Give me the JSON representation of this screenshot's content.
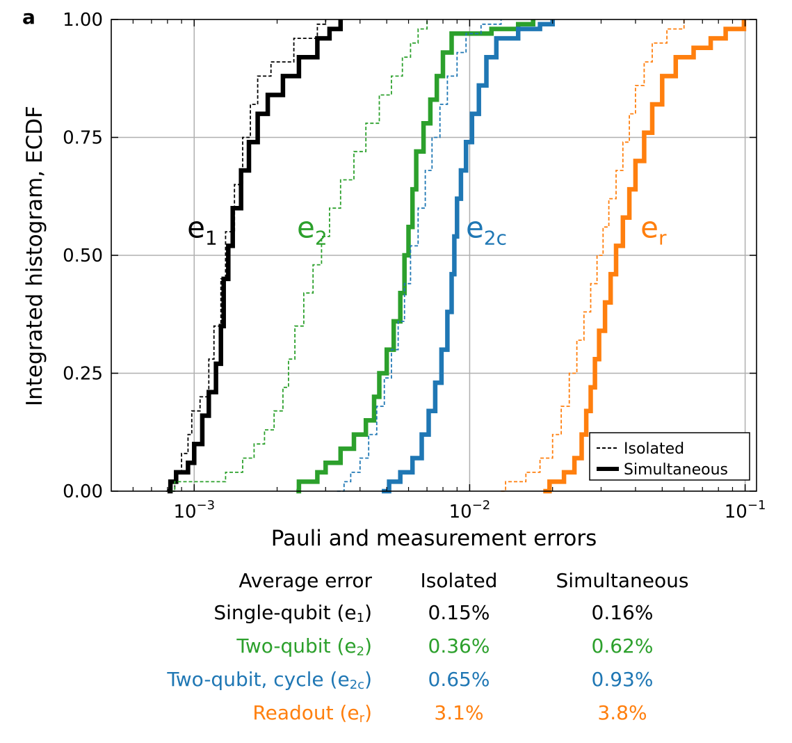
{
  "panel_label": "a",
  "colors": {
    "e1": "#000000",
    "e2": "#2ca02c",
    "e2c": "#1f77b4",
    "er": "#ff7f0e",
    "grid": "#b0b0b0"
  },
  "chart_data": {
    "type": "line",
    "subtype": "ecdf-step",
    "xlabel": "Pauli and measurement errors",
    "ylabel": "Integrated histogram, ECDF",
    "xscale": "log",
    "xlim": [
      0.0005,
      0.11
    ],
    "ylim": [
      0,
      1
    ],
    "xticks": [
      {
        "value": 0.001,
        "base": "10",
        "exp": "−3"
      },
      {
        "value": 0.01,
        "base": "10",
        "exp": "−2"
      },
      {
        "value": 0.1,
        "base": "10",
        "exp": "−1"
      }
    ],
    "yticks": [
      {
        "value": 0,
        "label": "0.00"
      },
      {
        "value": 0.25,
        "label": "0.25"
      },
      {
        "value": 0.5,
        "label": "0.50"
      },
      {
        "value": 0.75,
        "label": "0.75"
      },
      {
        "value": 1,
        "label": "1.00"
      }
    ],
    "grid": true,
    "legend": {
      "position": "bottom-right",
      "entries": [
        {
          "label": "Isolated",
          "style": "dashed"
        },
        {
          "label": "Simultaneous",
          "style": "solid"
        }
      ]
    },
    "annotations": [
      {
        "key": "e1",
        "base": "e",
        "sub": "1",
        "x": 0.00107,
        "y": 0.555
      },
      {
        "key": "e2",
        "base": "e",
        "sub": "2",
        "x": 0.00268,
        "y": 0.555
      },
      {
        "key": "e2c",
        "base": "e",
        "sub": "2c",
        "x": 0.0115,
        "y": 0.555
      },
      {
        "key": "er",
        "base": "e",
        "sub": "r",
        "x": 0.0465,
        "y": 0.555
      }
    ],
    "series": [
      {
        "key": "e1",
        "mode": "isolated",
        "points": [
          [
            0.00079,
            0
          ],
          [
            0.00085,
            0.04
          ],
          [
            0.0009,
            0.08
          ],
          [
            0.00095,
            0.12
          ],
          [
            0.00098,
            0.17
          ],
          [
            0.00105,
            0.2
          ],
          [
            0.00113,
            0.28
          ],
          [
            0.00118,
            0.35
          ],
          [
            0.00125,
            0.45
          ],
          [
            0.0013,
            0.55
          ],
          [
            0.0014,
            0.65
          ],
          [
            0.0015,
            0.75
          ],
          [
            0.0016,
            0.82
          ],
          [
            0.0017,
            0.88
          ],
          [
            0.0019,
            0.91
          ],
          [
            0.0023,
            0.96
          ],
          [
            0.0028,
            0.99
          ],
          [
            0.003,
            1.0
          ]
        ]
      },
      {
        "key": "e1",
        "mode": "simultaneous",
        "points": [
          [
            0.0008,
            0
          ],
          [
            0.00082,
            0.02
          ],
          [
            0.00086,
            0.04
          ],
          [
            0.00095,
            0.06
          ],
          [
            0.001,
            0.1
          ],
          [
            0.00107,
            0.16
          ],
          [
            0.00113,
            0.21
          ],
          [
            0.0012,
            0.27
          ],
          [
            0.00125,
            0.35
          ],
          [
            0.00128,
            0.45
          ],
          [
            0.00133,
            0.52
          ],
          [
            0.00138,
            0.6
          ],
          [
            0.00148,
            0.68
          ],
          [
            0.00158,
            0.74
          ],
          [
            0.0017,
            0.8
          ],
          [
            0.00185,
            0.84
          ],
          [
            0.0021,
            0.88
          ],
          [
            0.0024,
            0.92
          ],
          [
            0.0028,
            0.96
          ],
          [
            0.0031,
            0.98
          ],
          [
            0.0034,
            1.0
          ]
        ]
      },
      {
        "key": "e2",
        "mode": "isolated",
        "points": [
          [
            0.00082,
            0
          ],
          [
            0.00085,
            0.02
          ],
          [
            0.0013,
            0.04
          ],
          [
            0.0015,
            0.07
          ],
          [
            0.00165,
            0.1
          ],
          [
            0.0018,
            0.13
          ],
          [
            0.00195,
            0.17
          ],
          [
            0.0021,
            0.22
          ],
          [
            0.0022,
            0.28
          ],
          [
            0.00232,
            0.35
          ],
          [
            0.0025,
            0.42
          ],
          [
            0.0027,
            0.48
          ],
          [
            0.0029,
            0.54
          ],
          [
            0.0031,
            0.6
          ],
          [
            0.0034,
            0.66
          ],
          [
            0.0038,
            0.72
          ],
          [
            0.0042,
            0.78
          ],
          [
            0.0047,
            0.84
          ],
          [
            0.0052,
            0.88
          ],
          [
            0.0057,
            0.92
          ],
          [
            0.0061,
            0.95
          ],
          [
            0.0065,
            0.98
          ],
          [
            0.007,
            1.0
          ]
        ]
      },
      {
        "key": "e2",
        "mode": "simultaneous",
        "points": [
          [
            0.00235,
            0
          ],
          [
            0.0024,
            0.02
          ],
          [
            0.0028,
            0.04
          ],
          [
            0.003,
            0.06
          ],
          [
            0.0034,
            0.09
          ],
          [
            0.0038,
            0.12
          ],
          [
            0.0042,
            0.15
          ],
          [
            0.0045,
            0.2
          ],
          [
            0.0047,
            0.25
          ],
          [
            0.005,
            0.3
          ],
          [
            0.0053,
            0.36
          ],
          [
            0.0056,
            0.42
          ],
          [
            0.0058,
            0.5
          ],
          [
            0.006,
            0.56
          ],
          [
            0.0062,
            0.64
          ],
          [
            0.0064,
            0.72
          ],
          [
            0.0068,
            0.78
          ],
          [
            0.0072,
            0.83
          ],
          [
            0.0076,
            0.88
          ],
          [
            0.008,
            0.93
          ],
          [
            0.0086,
            0.97
          ],
          [
            0.012,
            0.98
          ],
          [
            0.015,
            0.99
          ],
          [
            0.017,
            1.0
          ]
        ]
      },
      {
        "key": "e2c",
        "mode": "isolated",
        "points": [
          [
            0.0033,
            0
          ],
          [
            0.0035,
            0.02
          ],
          [
            0.0037,
            0.04
          ],
          [
            0.004,
            0.07
          ],
          [
            0.0043,
            0.12
          ],
          [
            0.0046,
            0.18
          ],
          [
            0.0049,
            0.24
          ],
          [
            0.0052,
            0.3
          ],
          [
            0.0055,
            0.36
          ],
          [
            0.0058,
            0.44
          ],
          [
            0.0061,
            0.52
          ],
          [
            0.0065,
            0.6
          ],
          [
            0.0069,
            0.68
          ],
          [
            0.0073,
            0.75
          ],
          [
            0.0078,
            0.82
          ],
          [
            0.0083,
            0.88
          ],
          [
            0.009,
            0.93
          ],
          [
            0.0097,
            0.97
          ],
          [
            0.011,
            0.99
          ],
          [
            0.013,
            1.0
          ]
        ]
      },
      {
        "key": "e2c",
        "mode": "simultaneous",
        "points": [
          [
            0.0048,
            0
          ],
          [
            0.0051,
            0.02
          ],
          [
            0.0056,
            0.04
          ],
          [
            0.0062,
            0.07
          ],
          [
            0.0067,
            0.12
          ],
          [
            0.0071,
            0.17
          ],
          [
            0.0075,
            0.23
          ],
          [
            0.0079,
            0.3
          ],
          [
            0.0083,
            0.38
          ],
          [
            0.0086,
            0.46
          ],
          [
            0.0088,
            0.54
          ],
          [
            0.009,
            0.62
          ],
          [
            0.0093,
            0.68
          ],
          [
            0.0097,
            0.74
          ],
          [
            0.0102,
            0.8
          ],
          [
            0.0108,
            0.86
          ],
          [
            0.0115,
            0.92
          ],
          [
            0.0125,
            0.96
          ],
          [
            0.015,
            0.98
          ],
          [
            0.018,
            0.99
          ],
          [
            0.02,
            1.0
          ]
        ]
      },
      {
        "key": "er",
        "mode": "isolated",
        "points": [
          [
            0.013,
            0
          ],
          [
            0.0135,
            0.02
          ],
          [
            0.016,
            0.04
          ],
          [
            0.018,
            0.07
          ],
          [
            0.02,
            0.12
          ],
          [
            0.0215,
            0.18
          ],
          [
            0.023,
            0.25
          ],
          [
            0.0245,
            0.32
          ],
          [
            0.026,
            0.38
          ],
          [
            0.0275,
            0.44
          ],
          [
            0.029,
            0.5
          ],
          [
            0.0305,
            0.56
          ],
          [
            0.032,
            0.62
          ],
          [
            0.034,
            0.68
          ],
          [
            0.036,
            0.74
          ],
          [
            0.038,
            0.8
          ],
          [
            0.04,
            0.86
          ],
          [
            0.043,
            0.91
          ],
          [
            0.046,
            0.95
          ],
          [
            0.052,
            0.98
          ],
          [
            0.06,
            1.0
          ]
        ]
      },
      {
        "key": "er",
        "mode": "simultaneous",
        "points": [
          [
            0.0185,
            0
          ],
          [
            0.0195,
            0.02
          ],
          [
            0.022,
            0.04
          ],
          [
            0.024,
            0.07
          ],
          [
            0.0255,
            0.12
          ],
          [
            0.0265,
            0.17
          ],
          [
            0.0275,
            0.22
          ],
          [
            0.0285,
            0.28
          ],
          [
            0.0295,
            0.34
          ],
          [
            0.031,
            0.4
          ],
          [
            0.0325,
            0.46
          ],
          [
            0.034,
            0.52
          ],
          [
            0.036,
            0.58
          ],
          [
            0.038,
            0.64
          ],
          [
            0.04,
            0.7
          ],
          [
            0.043,
            0.76
          ],
          [
            0.046,
            0.82
          ],
          [
            0.05,
            0.88
          ],
          [
            0.056,
            0.92
          ],
          [
            0.065,
            0.94
          ],
          [
            0.075,
            0.96
          ],
          [
            0.085,
            0.98
          ],
          [
            0.099,
            1.0
          ]
        ]
      }
    ]
  },
  "summary_table": {
    "header": {
      "label": "Average error",
      "isolated": "Isolated",
      "simultaneous": "Simultaneous"
    },
    "rows": [
      {
        "key": "e1",
        "label": "Single-qubit (e",
        "sub": "1",
        "label_end": ")",
        "isolated": "0.15%",
        "simultaneous": "0.16%"
      },
      {
        "key": "e2",
        "label": "Two-qubit (e",
        "sub": "2",
        "label_end": ")",
        "isolated": "0.36%",
        "simultaneous": "0.62%"
      },
      {
        "key": "e2c",
        "label": "Two-qubit, cycle (e",
        "sub": "2c",
        "label_end": ")",
        "isolated": "0.65%",
        "simultaneous": "0.93%"
      },
      {
        "key": "er",
        "label": "Readout (e",
        "sub": "r",
        "label_end": ")",
        "isolated": "3.1%",
        "simultaneous": "3.8%"
      }
    ]
  }
}
